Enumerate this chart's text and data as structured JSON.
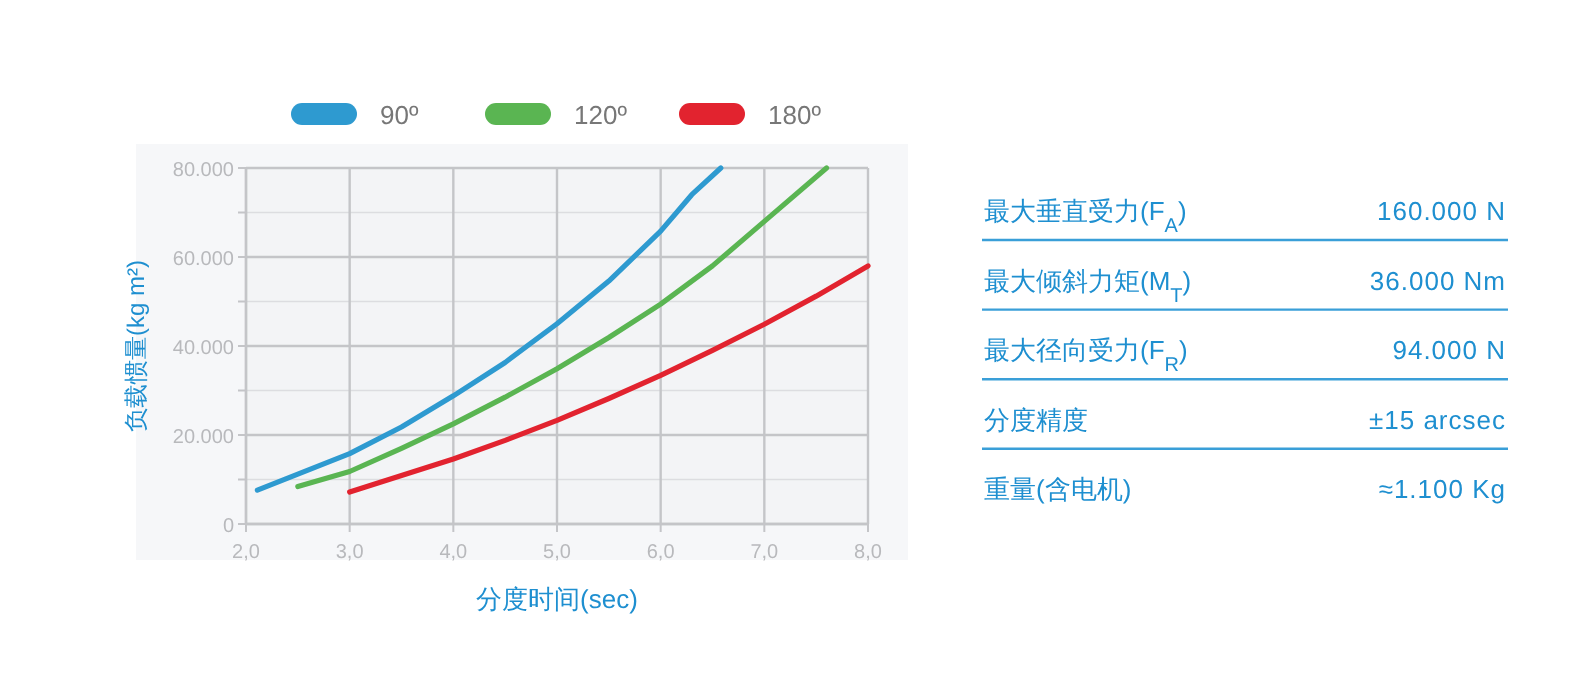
{
  "chart_data": [
    {
      "type": "line",
      "xlabel": "分度时间(sec)",
      "ylabel": "负载惯量(kg m²)",
      "xlim": [
        2,
        8
      ],
      "ylim": [
        0,
        80000
      ],
      "xticks": [
        {
          "value": 2,
          "label": "2,0"
        },
        {
          "value": 3,
          "label": "3,0"
        },
        {
          "value": 4,
          "label": "4,0"
        },
        {
          "value": 5,
          "label": "5,0"
        },
        {
          "value": 6,
          "label": "6,0"
        },
        {
          "value": 7,
          "label": "7,0"
        },
        {
          "value": 8,
          "label": "8,0"
        }
      ],
      "yticks": [
        0,
        {
          "value": 10000,
          "label": null
        },
        {
          "value": 20000,
          "label": "20.000"
        },
        {
          "value": 30000,
          "label": null
        },
        {
          "value": 40000,
          "label": "40.000"
        },
        {
          "value": 50000,
          "label": null
        },
        {
          "value": 60000,
          "label": "60.000"
        },
        {
          "value": 70000,
          "label": null
        },
        {
          "value": 80000,
          "label": "80.000"
        }
      ],
      "grid": true,
      "legend": "top right",
      "marker": "none",
      "line_style": "solid",
      "series": [
        {
          "name": "90º",
          "color": "#2e9ad0",
          "x": [
            2.11,
            2.5,
            3,
            3.5,
            4,
            4.5,
            5,
            5.5,
            6,
            6.3,
            6.58
          ],
          "values": [
            7600,
            11200,
            15800,
            21800,
            28800,
            36300,
            45000,
            54600,
            65800,
            74000,
            80000
          ]
        },
        {
          "name": "120º",
          "color": "#5ab552",
          "x": [
            2.5,
            3,
            3.5,
            4,
            4.5,
            5,
            5.5,
            6,
            6.5,
            7,
            7.6
          ],
          "values": [
            8400,
            11800,
            17000,
            22500,
            28500,
            34900,
            41900,
            49400,
            58000,
            68000,
            80000
          ]
        },
        {
          "name": "180º",
          "color": "#e2232f",
          "x": [
            3,
            3.5,
            4,
            4.5,
            5,
            5.5,
            6,
            6.5,
            7,
            7.5,
            8
          ],
          "values": [
            7200,
            10900,
            14600,
            18800,
            23300,
            28200,
            33400,
            39000,
            44900,
            51200,
            58000
          ]
        }
      ]
    },
    {
      "type": "other",
      "annotations": [
        "最大垂直受力(F$_{A}$)",
        "160.000 N",
        "最大倾斜力矩(M$_{T}$)",
        "36.000 Nm",
        "最大径向受力(F$_{R}$)",
        "94.000 N",
        "分度精度",
        "±15 arcsec",
        "重量(含电机)",
        "≈1.100 Kg"
      ]
    }
  ]
}
